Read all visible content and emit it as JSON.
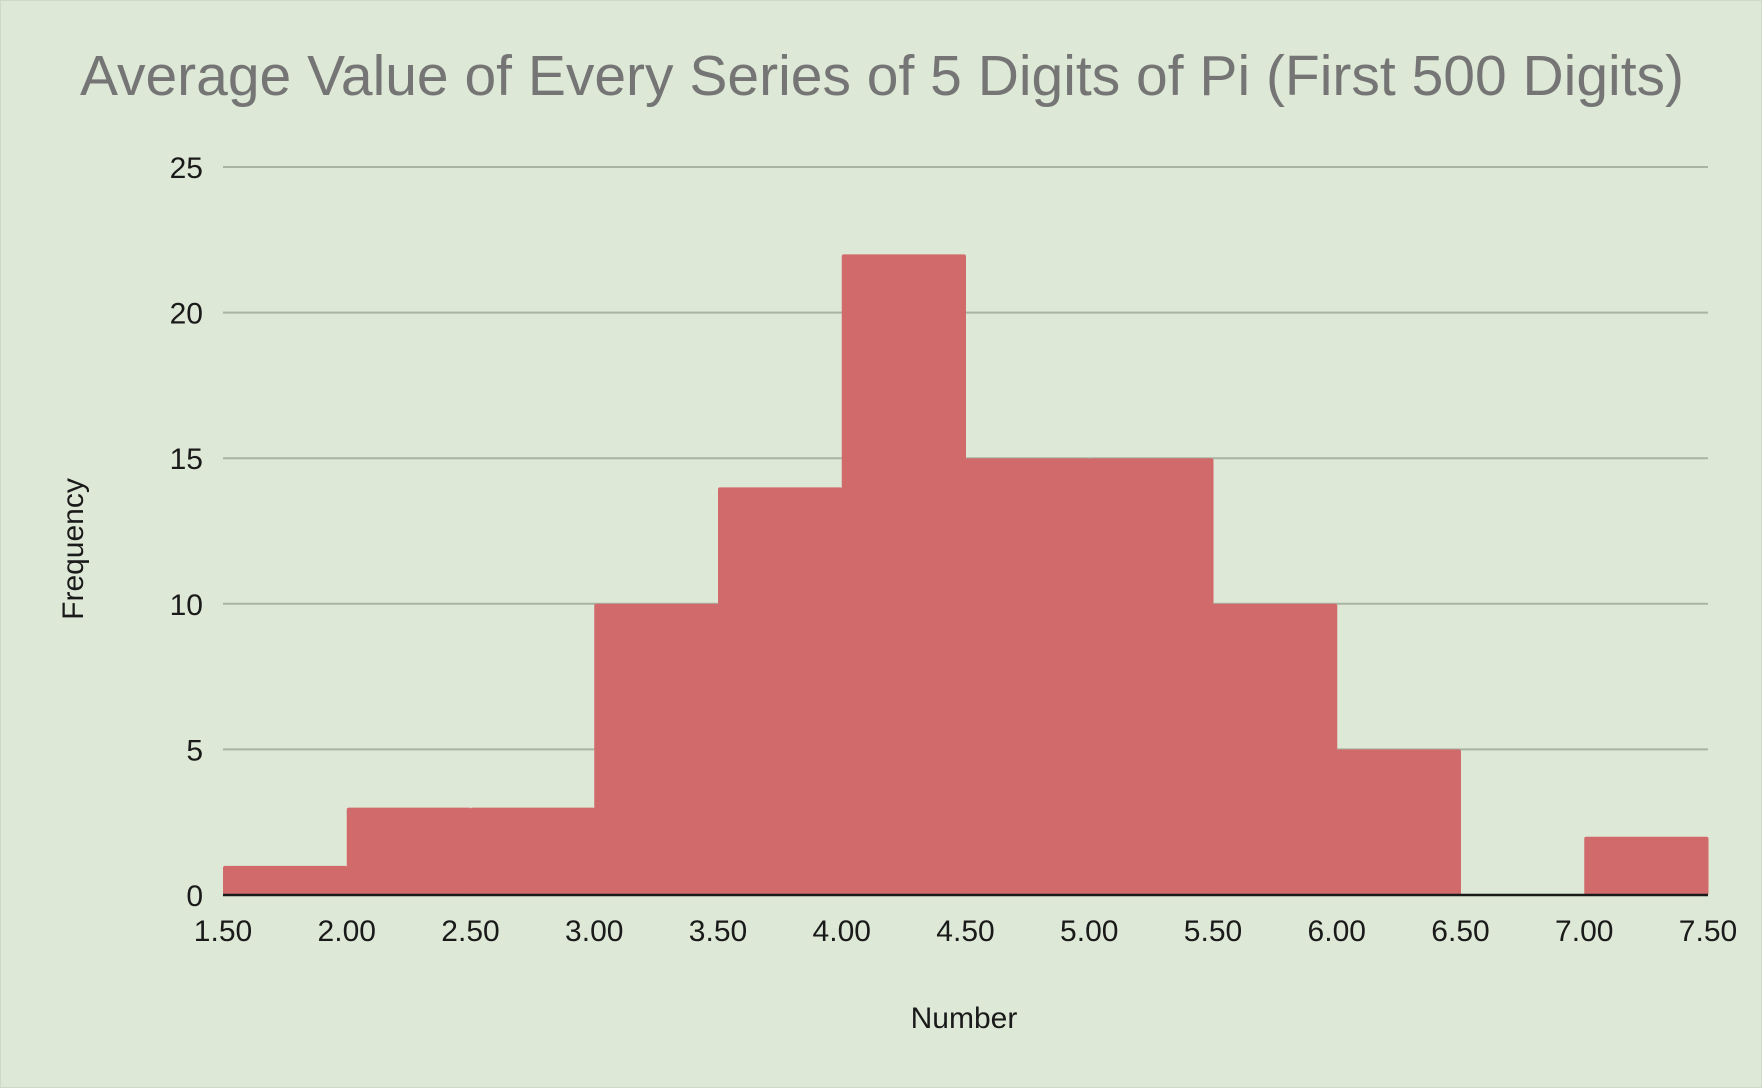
{
  "chart_data": {
    "type": "bar",
    "subtype": "histogram",
    "title": "Average Value of Every Series of 5 Digits of Pi (First 500 Digits)",
    "xlabel": "Number",
    "ylabel": "Frequency",
    "xlim": [
      1.5,
      7.5
    ],
    "ylim": [
      0,
      25
    ],
    "x_ticks": [
      "1.50",
      "2.00",
      "2.50",
      "3.00",
      "3.50",
      "4.00",
      "4.50",
      "5.00",
      "5.50",
      "6.00",
      "6.50",
      "7.00",
      "7.50"
    ],
    "y_ticks": [
      "0",
      "5",
      "10",
      "15",
      "20",
      "25"
    ],
    "bins": [
      {
        "start": 1.5,
        "end": 2.0,
        "value": 1
      },
      {
        "start": 2.0,
        "end": 2.5,
        "value": 3
      },
      {
        "start": 2.5,
        "end": 3.0,
        "value": 3
      },
      {
        "start": 3.0,
        "end": 3.5,
        "value": 10
      },
      {
        "start": 3.5,
        "end": 4.0,
        "value": 14
      },
      {
        "start": 4.0,
        "end": 4.5,
        "value": 22
      },
      {
        "start": 4.5,
        "end": 5.0,
        "value": 15
      },
      {
        "start": 5.0,
        "end": 5.5,
        "value": 15
      },
      {
        "start": 5.5,
        "end": 6.0,
        "value": 10
      },
      {
        "start": 6.0,
        "end": 6.5,
        "value": 5
      },
      {
        "start": 6.5,
        "end": 7.0,
        "value": 0
      },
      {
        "start": 7.0,
        "end": 7.5,
        "value": 2
      }
    ],
    "grid": true,
    "legend": "none",
    "colors": {
      "bar": "#d16b6b",
      "background": "#dde8d6",
      "gridline": "#a9b5a3",
      "baseline": "#1a1a1a",
      "title": "#757575"
    }
  }
}
